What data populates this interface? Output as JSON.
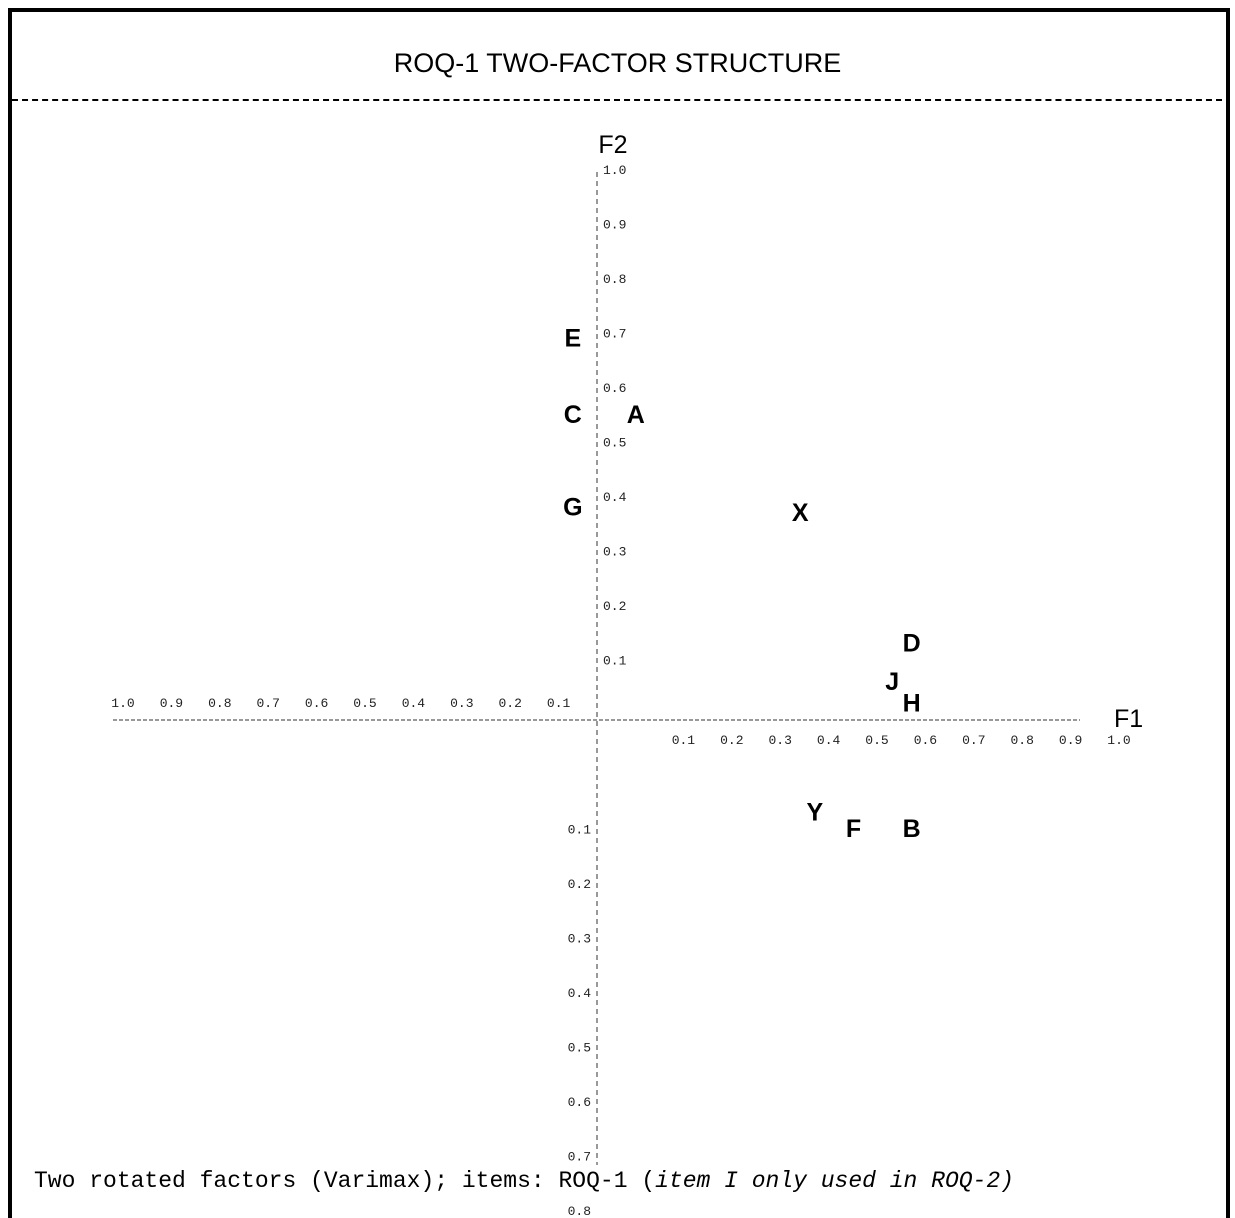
{
  "chart_data": {
    "type": "scatter",
    "title": "ROQ-1  TWO-FACTOR STRUCTURE",
    "xlabel": "F1",
    "ylabel": "F2",
    "xlim": [
      -1.0,
      1.0
    ],
    "ylim": [
      -0.8,
      1.0
    ],
    "x_tick_labels_positive": [
      "0.1",
      "0.2",
      "0.3",
      "0.4",
      "0.5",
      "0.6",
      "0.7",
      "0.8",
      "0.9",
      "1.0"
    ],
    "x_tick_labels_negative": [
      "1.0",
      "0.9",
      "0.8",
      "0.7",
      "0.6",
      "0.5",
      "0.4",
      "0.3",
      "0.2",
      "0.1"
    ],
    "y_tick_labels_positive": [
      "0.1",
      "0.2",
      "0.3",
      "0.4",
      "0.5",
      "0.6",
      "0.7",
      "0.8",
      "0.9",
      "1.0"
    ],
    "y_tick_labels_negative": [
      "0.1",
      "0.2",
      "0.3",
      "0.4",
      "0.5",
      "0.6",
      "0.7",
      "0.8"
    ],
    "points": [
      {
        "label": "E",
        "x": -0.05,
        "y": 0.7
      },
      {
        "label": "C",
        "x": -0.05,
        "y": 0.56
      },
      {
        "label": "A",
        "x": 0.08,
        "y": 0.56
      },
      {
        "label": "G",
        "x": -0.05,
        "y": 0.39
      },
      {
        "label": "X",
        "x": 0.42,
        "y": 0.38
      },
      {
        "label": "D",
        "x": 0.65,
        "y": 0.14
      },
      {
        "label": "J",
        "x": 0.61,
        "y": 0.07
      },
      {
        "label": "H",
        "x": 0.65,
        "y": 0.03
      },
      {
        "label": "Y",
        "x": 0.45,
        "y": -0.17
      },
      {
        "label": "F",
        "x": 0.53,
        "y": -0.2
      },
      {
        "label": "B",
        "x": 0.65,
        "y": -0.2
      }
    ]
  },
  "caption": {
    "main": "Two rotated factors (Varimax); items: ROQ-1 (",
    "note": "item I only used in ROQ-2)"
  }
}
